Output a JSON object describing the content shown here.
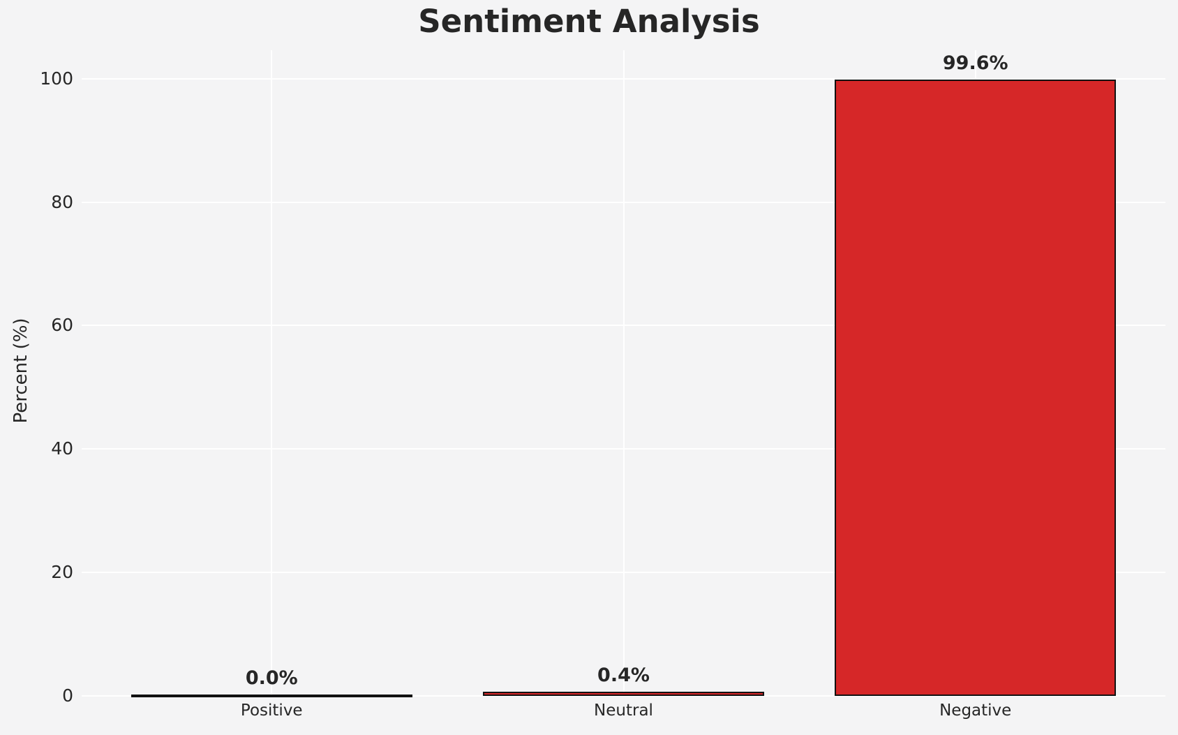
{
  "chart_data": {
    "type": "bar",
    "title": "Sentiment Analysis",
    "xlabel": "",
    "ylabel": "Percent (%)",
    "categories": [
      "Positive",
      "Neutral",
      "Negative"
    ],
    "values": [
      0.0,
      0.4,
      99.6
    ],
    "value_labels": [
      "0.0%",
      "0.4%",
      "99.6%"
    ],
    "yticks": [
      0,
      20,
      40,
      60,
      80,
      100
    ],
    "ylim": [
      0,
      104.6
    ],
    "grid": "on",
    "legend": "none",
    "bar_color": "#d62728",
    "bar_edge_color": "#111111",
    "background_color": "#f4f4f5",
    "grid_color": "#ffffff",
    "text_color": "#262626"
  }
}
